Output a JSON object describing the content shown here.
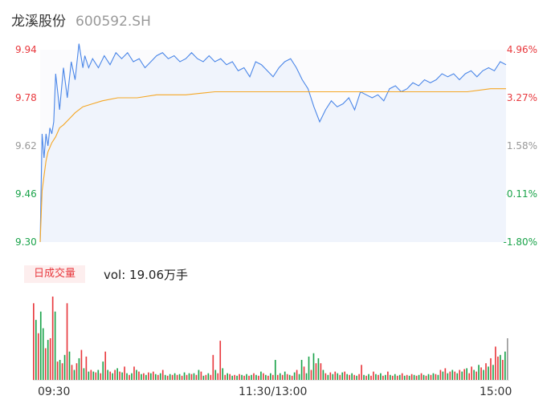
{
  "header": {
    "name": "龙溪股份",
    "code": "600592.SH"
  },
  "colors": {
    "price_line": "#4a86e8",
    "avg_line": "#f5a623",
    "up": "#e8383d",
    "down": "#1aa34a",
    "neutral": "#999999"
  },
  "volume_header": {
    "badge": "日成交量",
    "vol_text": "vol: 19.06万手"
  },
  "chart_data": [
    {
      "type": "line",
      "title": "",
      "y_left_ticks": [
        "9.94",
        "9.78",
        "9.62",
        "9.46",
        "9.30"
      ],
      "y_right_ticks": [
        "4.96%",
        "3.27%",
        "1.58%",
        "-0.11%",
        "-1.80%"
      ],
      "ylim": [
        9.3,
        9.94
      ],
      "x_labels": [
        "09:30",
        "11:30/13:00",
        "15:00"
      ],
      "x_minutes": [
        0,
        120,
        240
      ],
      "series": [
        {
          "role": "price",
          "x": [
            0,
            1,
            2,
            3,
            4,
            5,
            6,
            7,
            8,
            9,
            10,
            12,
            14,
            16,
            18,
            20,
            22,
            23,
            25,
            27,
            30,
            33,
            36,
            39,
            42,
            45,
            48,
            51,
            54,
            57,
            60,
            63,
            66,
            69,
            72,
            75,
            78,
            81,
            84,
            87,
            90,
            93,
            96,
            99,
            102,
            105,
            108,
            111,
            114,
            117,
            120,
            123,
            126,
            129,
            132,
            135,
            138,
            141,
            144,
            147,
            150,
            153,
            156,
            159,
            162,
            165,
            168,
            171,
            174,
            177,
            180,
            183,
            186,
            189,
            192,
            195,
            198,
            201,
            204,
            207,
            210,
            213,
            216,
            219,
            222,
            225,
            228,
            231,
            234,
            237,
            240
          ],
          "y": [
            9.3,
            9.66,
            9.58,
            9.66,
            9.62,
            9.68,
            9.66,
            9.7,
            9.86,
            9.8,
            9.74,
            9.88,
            9.78,
            9.9,
            9.84,
            9.96,
            9.88,
            9.92,
            9.88,
            9.91,
            9.88,
            9.92,
            9.89,
            9.93,
            9.91,
            9.93,
            9.9,
            9.91,
            9.88,
            9.9,
            9.92,
            9.93,
            9.91,
            9.92,
            9.9,
            9.91,
            9.93,
            9.91,
            9.9,
            9.92,
            9.9,
            9.91,
            9.89,
            9.9,
            9.87,
            9.88,
            9.85,
            9.9,
            9.89,
            9.87,
            9.85,
            9.88,
            9.9,
            9.91,
            9.88,
            9.84,
            9.81,
            9.75,
            9.7,
            9.74,
            9.77,
            9.75,
            9.76,
            9.78,
            9.74,
            9.8,
            9.79,
            9.78,
            9.79,
            9.77,
            9.81,
            9.82,
            9.8,
            9.81,
            9.83,
            9.82,
            9.84,
            9.83,
            9.84,
            9.86,
            9.85,
            9.86,
            9.84,
            9.86,
            9.87,
            9.85,
            9.87,
            9.88,
            9.87,
            9.9,
            9.89
          ]
        },
        {
          "role": "average",
          "x": [
            0,
            1,
            2,
            3,
            4,
            6,
            8,
            10,
            12,
            15,
            18,
            22,
            27,
            32,
            40,
            50,
            60,
            75,
            90,
            105,
            120,
            140,
            160,
            180,
            200,
            220,
            232,
            240
          ],
          "y": [
            9.3,
            9.47,
            9.52,
            9.57,
            9.6,
            9.63,
            9.65,
            9.68,
            9.69,
            9.71,
            9.73,
            9.75,
            9.76,
            9.77,
            9.78,
            9.78,
            9.79,
            9.79,
            9.8,
            9.8,
            9.8,
            9.8,
            9.8,
            9.8,
            9.8,
            9.8,
            9.81,
            9.81
          ]
        }
      ]
    },
    {
      "type": "bar",
      "title": "",
      "ylabel": "",
      "series_name": "vol",
      "values": [
        {
          "v": 0.92,
          "dir": "up"
        },
        {
          "v": 0.72,
          "dir": "down"
        },
        {
          "v": 0.56,
          "dir": "up"
        },
        {
          "v": 0.82,
          "dir": "down"
        },
        {
          "v": 0.62,
          "dir": "down"
        },
        {
          "v": 0.38,
          "dir": "up"
        },
        {
          "v": 0.48,
          "dir": "down"
        },
        {
          "v": 0.5,
          "dir": "up"
        },
        {
          "v": 1.0,
          "dir": "up"
        },
        {
          "v": 0.82,
          "dir": "down"
        },
        {
          "v": 0.22,
          "dir": "up"
        },
        {
          "v": 0.24,
          "dir": "down"
        },
        {
          "v": 0.2,
          "dir": "up"
        },
        {
          "v": 0.3,
          "dir": "down"
        },
        {
          "v": 0.92,
          "dir": "up"
        },
        {
          "v": 0.34,
          "dir": "down"
        },
        {
          "v": 0.18,
          "dir": "up"
        },
        {
          "v": 0.12,
          "dir": "down"
        },
        {
          "v": 0.2,
          "dir": "up"
        },
        {
          "v": 0.26,
          "dir": "down"
        },
        {
          "v": 0.36,
          "dir": "up"
        },
        {
          "v": 0.14,
          "dir": "down"
        },
        {
          "v": 0.28,
          "dir": "up"
        },
        {
          "v": 0.1,
          "dir": "down"
        },
        {
          "v": 0.12,
          "dir": "up"
        },
        {
          "v": 0.1,
          "dir": "down"
        },
        {
          "v": 0.09,
          "dir": "up"
        },
        {
          "v": 0.12,
          "dir": "down"
        },
        {
          "v": 0.08,
          "dir": "up"
        },
        {
          "v": 0.22,
          "dir": "down"
        },
        {
          "v": 0.34,
          "dir": "up"
        },
        {
          "v": 0.12,
          "dir": "down"
        },
        {
          "v": 0.1,
          "dir": "up"
        },
        {
          "v": 0.08,
          "dir": "down"
        },
        {
          "v": 0.12,
          "dir": "up"
        },
        {
          "v": 0.14,
          "dir": "down"
        },
        {
          "v": 0.1,
          "dir": "up"
        },
        {
          "v": 0.09,
          "dir": "down"
        },
        {
          "v": 0.16,
          "dir": "up"
        },
        {
          "v": 0.08,
          "dir": "down"
        },
        {
          "v": 0.06,
          "dir": "up"
        },
        {
          "v": 0.08,
          "dir": "down"
        },
        {
          "v": 0.16,
          "dir": "up"
        },
        {
          "v": 0.12,
          "dir": "down"
        },
        {
          "v": 0.1,
          "dir": "up"
        },
        {
          "v": 0.07,
          "dir": "down"
        },
        {
          "v": 0.08,
          "dir": "up"
        },
        {
          "v": 0.06,
          "dir": "down"
        },
        {
          "v": 0.09,
          "dir": "up"
        },
        {
          "v": 0.08,
          "dir": "down"
        },
        {
          "v": 0.1,
          "dir": "up"
        },
        {
          "v": 0.07,
          "dir": "down"
        },
        {
          "v": 0.06,
          "dir": "up"
        },
        {
          "v": 0.08,
          "dir": "down"
        },
        {
          "v": 0.12,
          "dir": "up"
        },
        {
          "v": 0.06,
          "dir": "down"
        },
        {
          "v": 0.05,
          "dir": "up"
        },
        {
          "v": 0.07,
          "dir": "down"
        },
        {
          "v": 0.06,
          "dir": "up"
        },
        {
          "v": 0.08,
          "dir": "down"
        },
        {
          "v": 0.06,
          "dir": "up"
        },
        {
          "v": 0.07,
          "dir": "down"
        },
        {
          "v": 0.05,
          "dir": "up"
        },
        {
          "v": 0.09,
          "dir": "down"
        },
        {
          "v": 0.06,
          "dir": "up"
        },
        {
          "v": 0.08,
          "dir": "down"
        },
        {
          "v": 0.07,
          "dir": "up"
        },
        {
          "v": 0.08,
          "dir": "down"
        },
        {
          "v": 0.06,
          "dir": "up"
        },
        {
          "v": 0.12,
          "dir": "down"
        },
        {
          "v": 0.1,
          "dir": "up"
        },
        {
          "v": 0.05,
          "dir": "down"
        },
        {
          "v": 0.06,
          "dir": "up"
        },
        {
          "v": 0.08,
          "dir": "down"
        },
        {
          "v": 0.06,
          "dir": "up"
        },
        {
          "v": 0.3,
          "dir": "up"
        },
        {
          "v": 0.12,
          "dir": "down"
        },
        {
          "v": 0.08,
          "dir": "up"
        },
        {
          "v": 0.47,
          "dir": "up"
        },
        {
          "v": 0.14,
          "dir": "down"
        },
        {
          "v": 0.06,
          "dir": "up"
        },
        {
          "v": 0.08,
          "dir": "down"
        },
        {
          "v": 0.07,
          "dir": "up"
        },
        {
          "v": 0.05,
          "dir": "down"
        },
        {
          "v": 0.06,
          "dir": "up"
        },
        {
          "v": 0.05,
          "dir": "down"
        },
        {
          "v": 0.07,
          "dir": "up"
        },
        {
          "v": 0.06,
          "dir": "down"
        },
        {
          "v": 0.05,
          "dir": "up"
        },
        {
          "v": 0.07,
          "dir": "down"
        },
        {
          "v": 0.05,
          "dir": "up"
        },
        {
          "v": 0.06,
          "dir": "down"
        },
        {
          "v": 0.08,
          "dir": "up"
        },
        {
          "v": 0.06,
          "dir": "down"
        },
        {
          "v": 0.05,
          "dir": "up"
        },
        {
          "v": 0.1,
          "dir": "down"
        },
        {
          "v": 0.08,
          "dir": "up"
        },
        {
          "v": 0.06,
          "dir": "down"
        },
        {
          "v": 0.05,
          "dir": "up"
        },
        {
          "v": 0.08,
          "dir": "down"
        },
        {
          "v": 0.06,
          "dir": "up"
        },
        {
          "v": 0.24,
          "dir": "down"
        },
        {
          "v": 0.06,
          "dir": "up"
        },
        {
          "v": 0.08,
          "dir": "down"
        },
        {
          "v": 0.06,
          "dir": "up"
        },
        {
          "v": 0.1,
          "dir": "down"
        },
        {
          "v": 0.07,
          "dir": "up"
        },
        {
          "v": 0.06,
          "dir": "down"
        },
        {
          "v": 0.05,
          "dir": "up"
        },
        {
          "v": 0.09,
          "dir": "down"
        },
        {
          "v": 0.12,
          "dir": "up"
        },
        {
          "v": 0.07,
          "dir": "down"
        },
        {
          "v": 0.24,
          "dir": "down"
        },
        {
          "v": 0.16,
          "dir": "up"
        },
        {
          "v": 0.08,
          "dir": "down"
        },
        {
          "v": 0.28,
          "dir": "down"
        },
        {
          "v": 0.12,
          "dir": "up"
        },
        {
          "v": 0.32,
          "dir": "down"
        },
        {
          "v": 0.2,
          "dir": "up"
        },
        {
          "v": 0.26,
          "dir": "down"
        },
        {
          "v": 0.2,
          "dir": "up"
        },
        {
          "v": 0.12,
          "dir": "down"
        },
        {
          "v": 0.08,
          "dir": "up"
        },
        {
          "v": 0.06,
          "dir": "down"
        },
        {
          "v": 0.09,
          "dir": "up"
        },
        {
          "v": 0.07,
          "dir": "down"
        },
        {
          "v": 0.1,
          "dir": "up"
        },
        {
          "v": 0.08,
          "dir": "down"
        },
        {
          "v": 0.06,
          "dir": "up"
        },
        {
          "v": 0.09,
          "dir": "down"
        },
        {
          "v": 0.1,
          "dir": "up"
        },
        {
          "v": 0.07,
          "dir": "down"
        },
        {
          "v": 0.06,
          "dir": "up"
        },
        {
          "v": 0.08,
          "dir": "down"
        },
        {
          "v": 0.06,
          "dir": "up"
        },
        {
          "v": 0.05,
          "dir": "down"
        },
        {
          "v": 0.07,
          "dir": "up"
        },
        {
          "v": 0.18,
          "dir": "up"
        },
        {
          "v": 0.06,
          "dir": "down"
        },
        {
          "v": 0.05,
          "dir": "up"
        },
        {
          "v": 0.07,
          "dir": "down"
        },
        {
          "v": 0.05,
          "dir": "up"
        },
        {
          "v": 0.1,
          "dir": "up"
        },
        {
          "v": 0.07,
          "dir": "down"
        },
        {
          "v": 0.06,
          "dir": "up"
        },
        {
          "v": 0.08,
          "dir": "down"
        },
        {
          "v": 0.05,
          "dir": "up"
        },
        {
          "v": 0.06,
          "dir": "down"
        },
        {
          "v": 0.1,
          "dir": "up"
        },
        {
          "v": 0.06,
          "dir": "down"
        },
        {
          "v": 0.05,
          "dir": "up"
        },
        {
          "v": 0.07,
          "dir": "down"
        },
        {
          "v": 0.05,
          "dir": "up"
        },
        {
          "v": 0.06,
          "dir": "down"
        },
        {
          "v": 0.08,
          "dir": "up"
        },
        {
          "v": 0.05,
          "dir": "down"
        },
        {
          "v": 0.06,
          "dir": "up"
        },
        {
          "v": 0.05,
          "dir": "down"
        },
        {
          "v": 0.07,
          "dir": "up"
        },
        {
          "v": 0.06,
          "dir": "down"
        },
        {
          "v": 0.05,
          "dir": "up"
        },
        {
          "v": 0.06,
          "dir": "down"
        },
        {
          "v": 0.08,
          "dir": "up"
        },
        {
          "v": 0.06,
          "dir": "down"
        },
        {
          "v": 0.05,
          "dir": "up"
        },
        {
          "v": 0.07,
          "dir": "down"
        },
        {
          "v": 0.06,
          "dir": "up"
        },
        {
          "v": 0.08,
          "dir": "down"
        },
        {
          "v": 0.07,
          "dir": "up"
        },
        {
          "v": 0.06,
          "dir": "down"
        },
        {
          "v": 0.12,
          "dir": "up"
        },
        {
          "v": 0.1,
          "dir": "down"
        },
        {
          "v": 0.14,
          "dir": "up"
        },
        {
          "v": 0.08,
          "dir": "down"
        },
        {
          "v": 0.1,
          "dir": "up"
        },
        {
          "v": 0.12,
          "dir": "down"
        },
        {
          "v": 0.1,
          "dir": "up"
        },
        {
          "v": 0.08,
          "dir": "down"
        },
        {
          "v": 0.12,
          "dir": "up"
        },
        {
          "v": 0.1,
          "dir": "down"
        },
        {
          "v": 0.13,
          "dir": "up"
        },
        {
          "v": 0.14,
          "dir": "down"
        },
        {
          "v": 0.08,
          "dir": "up"
        },
        {
          "v": 0.16,
          "dir": "up"
        },
        {
          "v": 0.12,
          "dir": "down"
        },
        {
          "v": 0.1,
          "dir": "up"
        },
        {
          "v": 0.18,
          "dir": "down"
        },
        {
          "v": 0.15,
          "dir": "up"
        },
        {
          "v": 0.12,
          "dir": "down"
        },
        {
          "v": 0.2,
          "dir": "up"
        },
        {
          "v": 0.16,
          "dir": "down"
        },
        {
          "v": 0.26,
          "dir": "up"
        },
        {
          "v": 0.18,
          "dir": "down"
        },
        {
          "v": 0.4,
          "dir": "up"
        },
        {
          "v": 0.28,
          "dir": "up"
        },
        {
          "v": 0.3,
          "dir": "down"
        },
        {
          "v": 0.24,
          "dir": "up"
        },
        {
          "v": 0.34,
          "dir": "down"
        },
        {
          "v": 0.5,
          "dir": "neutral"
        }
      ]
    }
  ]
}
